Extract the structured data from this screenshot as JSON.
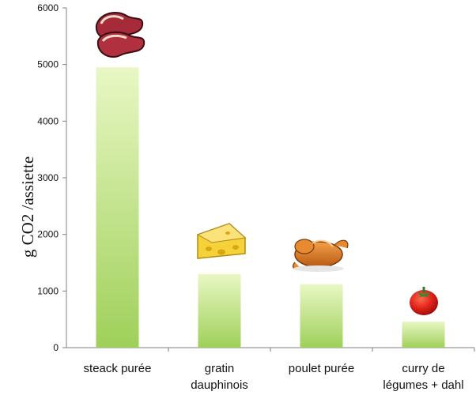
{
  "chart_data": {
    "type": "bar",
    "categories": [
      [
        "steack purée"
      ],
      [
        "gratin",
        "dauphinois"
      ],
      [
        "poulet purée"
      ],
      [
        "curry de",
        "légumes + dahl"
      ]
    ],
    "values": [
      4950,
      1300,
      1120,
      460
    ],
    "ylabel": "g CO2 /assiette",
    "xlabel": "",
    "ylim": [
      0,
      6000
    ],
    "yticks": [
      0,
      1000,
      2000,
      3000,
      4000,
      5000,
      6000
    ],
    "grid": false,
    "bar_gradient": [
      "#e8f7c4",
      "#9fd05a"
    ],
    "icons": [
      "steak-icon",
      "cheese-icon",
      "roast-chicken-icon",
      "tomato-icon"
    ]
  }
}
